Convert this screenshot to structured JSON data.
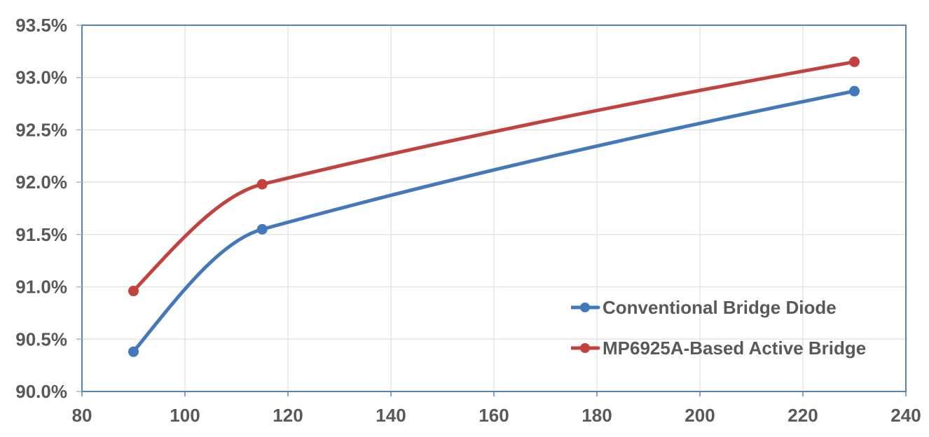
{
  "chart_data": {
    "type": "line",
    "title": "",
    "xlabel": "",
    "ylabel": "",
    "x": [
      90,
      115,
      230
    ],
    "series": [
      {
        "name": "Conventional Bridge Diode",
        "color": "#4379BB",
        "values": [
          90.38,
          91.55,
          92.87
        ]
      },
      {
        "name": "MP6925A-Based Active Bridge",
        "color": "#C2423E",
        "values": [
          90.96,
          91.98,
          93.15
        ]
      }
    ],
    "xlim": [
      80,
      240
    ],
    "ylim": [
      90.0,
      93.5
    ],
    "x_ticks": [
      80,
      100,
      120,
      140,
      160,
      180,
      200,
      220,
      240
    ],
    "x_tick_labels": [
      "80",
      "100",
      "120",
      "140",
      "160",
      "180",
      "200",
      "220",
      "240"
    ],
    "y_ticks": [
      90.0,
      90.5,
      91.0,
      91.5,
      92.0,
      92.5,
      93.0,
      93.5
    ],
    "y_tick_labels": [
      "90.0%",
      "90.5%",
      "91.0%",
      "91.5%",
      "92.0%",
      "92.5%",
      "93.0%",
      "93.5%"
    ],
    "grid": true,
    "legend_position": "inside-bottom-right",
    "colors": {
      "frame": "#5A82AE",
      "gridline": "#D9D9D9",
      "y_tick_mark": "#9FB6CE",
      "x_tick_mark": "#5A82AE",
      "text": "#595959",
      "background": "#FFFFFF"
    }
  }
}
